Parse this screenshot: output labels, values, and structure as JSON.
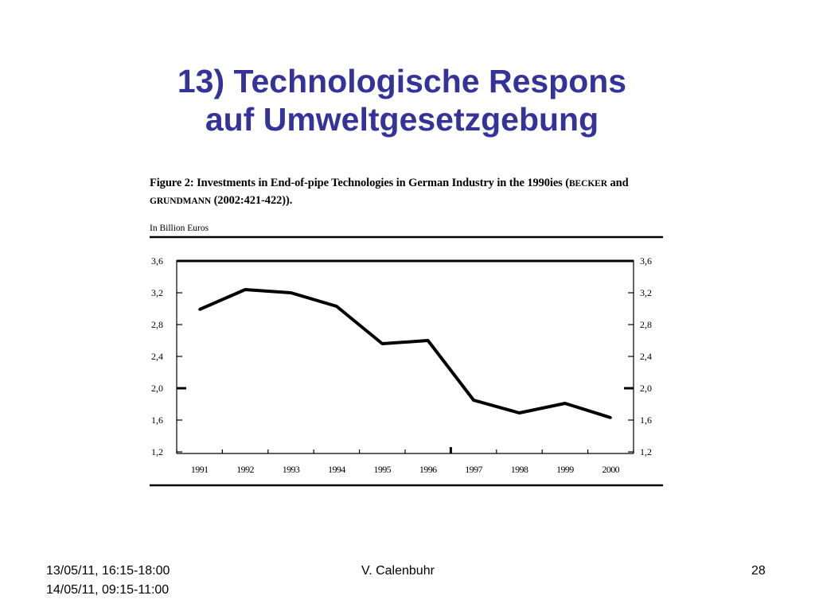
{
  "slide": {
    "title_line1": "13) Technologische Respons",
    "title_line2": "auf Umweltgesetzgebung",
    "title_color": "#333399"
  },
  "figure": {
    "caption_prefix": "Figure 2: Investments in End-of-pipe Technologies in German Industry in the 1990ies (",
    "caption_author1": "Becker",
    "caption_and": " and ",
    "caption_author2": "Grundmann",
    "caption_suffix": " (2002:421-422)).",
    "unit_label": "In Billion Euros"
  },
  "footer": {
    "dates_line1": "13/05/11, 16:15-18:00",
    "dates_line2": "14/05/11, 09:15-11:00",
    "author": "V. Calenbuhr",
    "page_number": "28"
  },
  "chart_data": {
    "type": "line",
    "title": "",
    "xlabel": "",
    "ylabel": "In Billion Euros",
    "categories": [
      "1991",
      "1992",
      "1993",
      "1994",
      "1995",
      "1996",
      "1997",
      "1998",
      "1999",
      "2000"
    ],
    "series": [
      {
        "values": [
          2.99,
          3.24,
          3.2,
          3.03,
          2.56,
          2.6,
          1.85,
          1.69,
          1.81,
          1.63
        ]
      }
    ],
    "ylim": [
      1.2,
      3.6
    ],
    "yticks": [
      "1,2",
      "1,6",
      "2,0",
      "2,4",
      "2,8",
      "3,2",
      "3,6"
    ],
    "ytick_values": [
      1.2,
      1.6,
      2.0,
      2.4,
      2.8,
      3.2,
      3.6
    ],
    "y_axis_both_sides": true,
    "grid": false,
    "legend": "none",
    "line_color": "#000000"
  }
}
